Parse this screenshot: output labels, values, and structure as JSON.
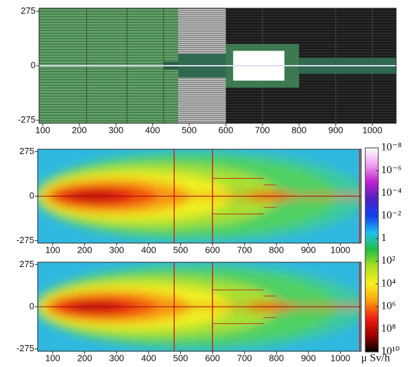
{
  "chart_data": [
    {
      "type": "geometry",
      "xlim": [
        90,
        1065
      ],
      "ylim": [
        -290,
        290
      ],
      "xticks": [
        100,
        200,
        300,
        400,
        500,
        600,
        700,
        800,
        900,
        1000
      ],
      "yticks": [
        275,
        0,
        -275
      ]
    },
    {
      "type": "heatmap",
      "xlim": [
        53,
        1065
      ],
      "ylim": [
        -290,
        290
      ],
      "xticks": [
        100,
        200,
        300,
        400,
        500,
        600,
        700,
        800,
        900,
        1000
      ],
      "yticks": [
        275,
        0,
        -275
      ]
    },
    {
      "type": "heatmap",
      "xlim": [
        53,
        1065
      ],
      "ylim": [
        -290,
        290
      ],
      "xticks": [
        100,
        200,
        300,
        400,
        500,
        600,
        700,
        800,
        900,
        1000
      ],
      "yticks": [
        275,
        0,
        -275
      ]
    },
    {
      "type": "colorbar",
      "log_scale": true,
      "clim": [
        1e-08,
        10000000000.0
      ],
      "label": "μ Sv/h",
      "ticks": [
        {
          "value": 1e-08,
          "label": "10⁻⁸"
        },
        {
          "value": 1e-06,
          "label": "10⁻⁶"
        },
        {
          "value": 0.0001,
          "label": "10⁻⁴"
        },
        {
          "value": 0.01,
          "label": "10⁻²"
        },
        1,
        {
          "value": 100,
          "label": "10²"
        },
        {
          "value": 10000,
          "label": "10⁴"
        },
        {
          "value": 1000000,
          "label": "10⁶"
        },
        {
          "value": 100000000,
          "label": "10⁸"
        },
        {
          "value": 10000000000,
          "label": "10¹⁰"
        }
      ],
      "colors": [
        "#ffffff",
        "#f0a0f0",
        "#c020d0",
        "#5020c0",
        "#1040f0",
        "#20c0f0",
        "#20c040",
        "#b0e020",
        "#f8f020",
        "#f8a010",
        "#f02010",
        "#a00000",
        "#000000"
      ]
    }
  ]
}
